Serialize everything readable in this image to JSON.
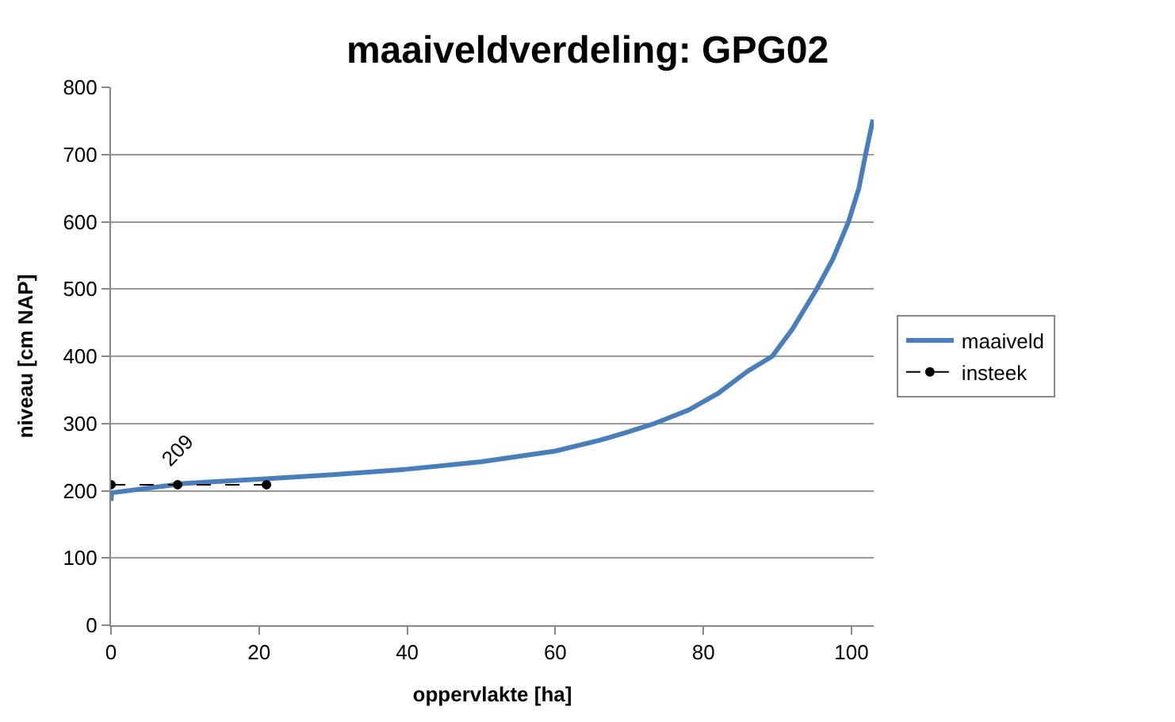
{
  "chart_data": {
    "type": "line",
    "title": "maaiveldverdeling: GPG02",
    "xlabel": "oppervlakte [ha]",
    "ylabel": "niveau [cm NAP]",
    "xlim": [
      0,
      103
    ],
    "xticks": [
      0,
      20,
      40,
      60,
      80,
      100
    ],
    "ylim": [
      0,
      800
    ],
    "yticks": [
      0,
      100,
      200,
      300,
      400,
      500,
      600,
      700,
      800
    ],
    "grid": "y",
    "legend": "right",
    "series": [
      {
        "name": "maaiveld",
        "color": "#4a7ebb",
        "marker": "none",
        "line_style": "solid",
        "x": [
          0,
          0.1,
          10,
          20,
          30,
          40,
          50,
          60,
          66,
          70,
          73.4,
          78,
          82,
          86,
          89.3,
          92,
          95.3,
          97.5,
          99.6,
          101,
          101.9,
          102.9
        ],
        "values": [
          185,
          197,
          211,
          217,
          224,
          232,
          243,
          259,
          275,
          288,
          300,
          320,
          345,
          378,
          400,
          440,
          500,
          545,
          600,
          650,
          700,
          752
        ]
      },
      {
        "name": "insteek",
        "color": "#000000",
        "marker": "circle",
        "line_style": "dashed",
        "x": [
          0,
          9,
          21
        ],
        "values": [
          209,
          209,
          209
        ],
        "value_labels": [
          null,
          "209",
          null
        ]
      }
    ]
  }
}
